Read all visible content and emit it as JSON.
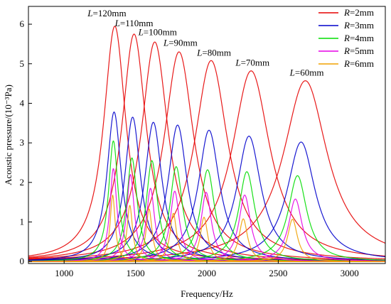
{
  "chart_data": {
    "type": "line",
    "title": "",
    "xlabel": "Frequency/Hz",
    "ylabel": "Acoustic pressure/(10⁻³Pa)",
    "xlim": [
      750,
      3250
    ],
    "ylim": [
      -0.05,
      6.45
    ],
    "x_ticks": [
      1000,
      1500,
      2000,
      2500,
      3000
    ],
    "y_ticks": [
      0,
      1,
      2,
      3,
      4,
      5,
      6
    ],
    "grid": false,
    "legend_position": "top-right",
    "legend_var": "R",
    "legend_unit": "=",
    "annotation_var": "L",
    "series": [
      {
        "name": "2mm",
        "var": "R",
        "color": "#e60000",
        "peaks": [
          [
            1355,
            5.95
          ],
          [
            1490,
            5.75
          ],
          [
            1635,
            5.55
          ],
          [
            1805,
            5.3
          ],
          [
            2030,
            5.08
          ],
          [
            2310,
            4.82
          ],
          [
            2690,
            4.57
          ]
        ]
      },
      {
        "name": "3mm",
        "var": "R",
        "color": "#0000cc",
        "peaks": [
          [
            1350,
            3.78
          ],
          [
            1480,
            3.65
          ],
          [
            1625,
            3.52
          ],
          [
            1795,
            3.45
          ],
          [
            2015,
            3.32
          ],
          [
            2295,
            3.17
          ],
          [
            2660,
            3.02
          ]
        ]
      },
      {
        "name": "4mm",
        "var": "R",
        "color": "#00dd00",
        "peaks": [
          [
            1345,
            3.05
          ],
          [
            1475,
            2.62
          ],
          [
            1615,
            2.55
          ],
          [
            1785,
            2.4
          ],
          [
            2005,
            2.32
          ],
          [
            2280,
            2.27
          ],
          [
            2635,
            2.17
          ]
        ]
      },
      {
        "name": "5mm",
        "var": "R",
        "color": "#e600e6",
        "peaks": [
          [
            1345,
            2.35
          ],
          [
            1465,
            2.2
          ],
          [
            1605,
            1.85
          ],
          [
            1775,
            1.78
          ],
          [
            1995,
            1.75
          ],
          [
            2265,
            1.68
          ],
          [
            2620,
            1.58
          ]
        ]
      },
      {
        "name": "6mm",
        "var": "R",
        "color": "#f0a000",
        "peaks": [
          [
            1340,
            1.68
          ],
          [
            1460,
            1.42
          ],
          [
            1595,
            1.33
          ],
          [
            1765,
            1.22
          ],
          [
            1980,
            1.12
          ],
          [
            2255,
            1.08
          ],
          [
            2600,
            1.07
          ]
        ]
      }
    ],
    "annotations": [
      {
        "var": "L",
        "text": "=120mm",
        "x": 1300,
        "y": 6.2
      },
      {
        "var": "L",
        "text": "=110mm",
        "x": 1490,
        "y": 5.95
      },
      {
        "var": "L",
        "text": "=100mm",
        "x": 1655,
        "y": 5.72
      },
      {
        "var": "L",
        "text": "=90mm",
        "x": 1815,
        "y": 5.45
      },
      {
        "var": "L",
        "text": "=80mm",
        "x": 2050,
        "y": 5.2
      },
      {
        "var": "L",
        "text": "=70mm",
        "x": 2320,
        "y": 4.95
      },
      {
        "var": "L",
        "text": "=60mm",
        "x": 2700,
        "y": 4.7
      }
    ]
  }
}
